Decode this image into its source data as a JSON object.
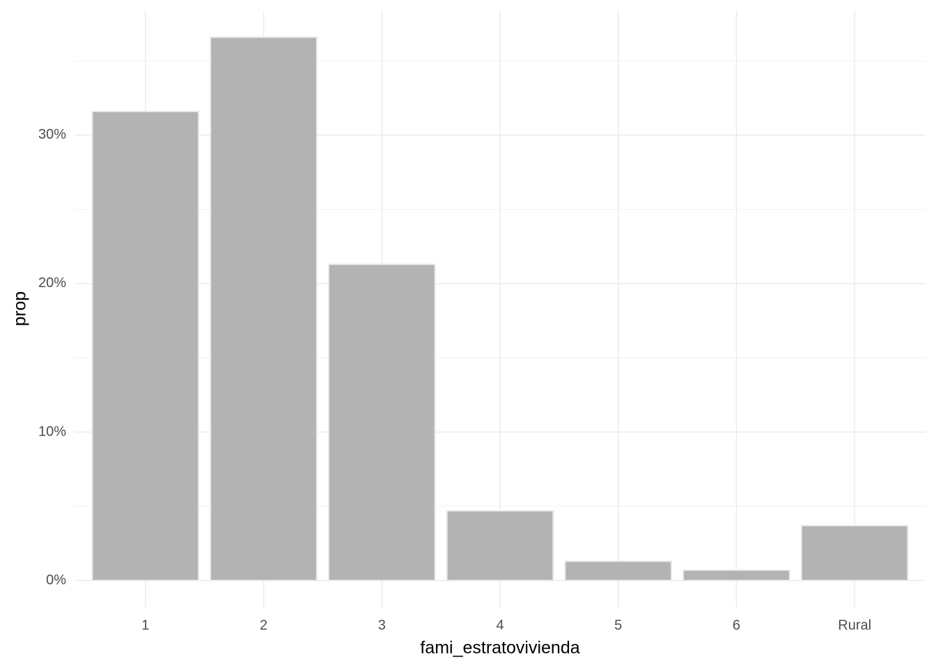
{
  "chart_data": {
    "type": "bar",
    "x_label": "fami_estratovivienda",
    "y_label": "prop",
    "categories": [
      "1",
      "2",
      "3",
      "4",
      "5",
      "6",
      "Rural"
    ],
    "values": [
      31.6,
      36.6,
      21.3,
      4.7,
      1.3,
      0.7,
      3.7
    ],
    "color": "#b3b3b3",
    "ylim": [
      -1.83,
      38.4
    ],
    "yticks": [
      {
        "value": 0,
        "label": "0%"
      },
      {
        "value": 10,
        "label": "10%"
      },
      {
        "value": 20,
        "label": "20%"
      },
      {
        "value": 30,
        "label": "30%"
      }
    ],
    "minor_yticks": [
      5,
      15,
      25,
      35
    ],
    "grid": true
  }
}
